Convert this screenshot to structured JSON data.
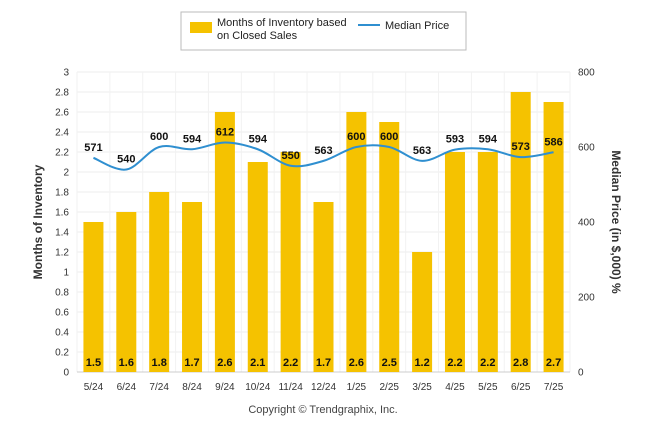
{
  "chart_data": {
    "type": "bar",
    "categories": [
      "5/24",
      "6/24",
      "7/24",
      "8/24",
      "9/24",
      "10/24",
      "11/24",
      "12/24",
      "1/25",
      "2/25",
      "3/25",
      "4/25",
      "5/25",
      "6/25",
      "7/25"
    ],
    "series": [
      {
        "name": "Months of Inventory based on Closed Sales",
        "type": "bar",
        "axis": "left",
        "color": "#F5C200",
        "values": [
          1.5,
          1.6,
          1.8,
          1.7,
          2.6,
          2.1,
          2.2,
          1.7,
          2.6,
          2.5,
          1.2,
          2.2,
          2.2,
          2.8,
          2.7
        ],
        "labels": [
          "1.5",
          "1.6",
          "1.8",
          "1.7",
          "2.6",
          "2.1",
          "2.2",
          "1.7",
          "2.6",
          "2.5",
          "1.2",
          "2.2",
          "2.2",
          "2.8",
          "2.7"
        ]
      },
      {
        "name": "Median Price",
        "type": "line",
        "axis": "right",
        "color": "#2F8FD0",
        "values": [
          571,
          540,
          600,
          594,
          612,
          594,
          550,
          563,
          600,
          600,
          563,
          593,
          594,
          573,
          586
        ],
        "labels": [
          "571",
          "540",
          "600",
          "594",
          "612",
          "594",
          "550",
          "563",
          "600",
          "600",
          "563",
          "593",
          "594",
          "573",
          "586"
        ]
      }
    ],
    "y_left": {
      "label": "Months of Inventory",
      "ylim": [
        0,
        3
      ],
      "ticks": [
        "0",
        "0.2",
        "0.4",
        "0.6",
        "0.8",
        "1",
        "1.2",
        "1.4",
        "1.6",
        "1.8",
        "2",
        "2.2",
        "2.4",
        "2.6",
        "2.8",
        "3"
      ]
    },
    "y_right": {
      "label": "Median Price (in $,000) %",
      "ylim": [
        0,
        800
      ],
      "ticks": [
        "0",
        "200",
        "400",
        "600",
        "800"
      ]
    },
    "legend": {
      "placement": "top-center",
      "bar_label_line1": "Months of Inventory based",
      "bar_label_line2": "on Closed Sales",
      "line_label": "Median Price"
    },
    "grid": true
  },
  "footer": {
    "copyright": "Copyright © Trendgraphix, Inc."
  }
}
